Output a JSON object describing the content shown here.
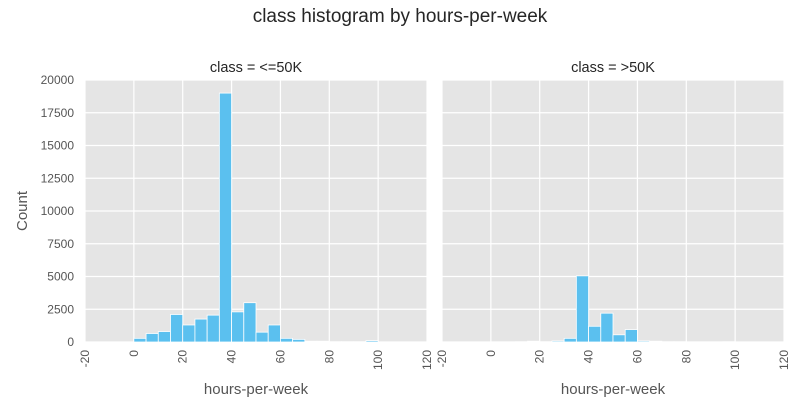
{
  "chart_data": {
    "type": "bar",
    "title": "class histogram by hours-per-week",
    "xlabel": "hours-per-week",
    "ylabel": "Count",
    "grid": true,
    "color": "#5bc0ef",
    "background": "#e5e5e5",
    "xlim": [
      -20,
      120
    ],
    "ylim": [
      0,
      20000
    ],
    "xticks": [
      -20,
      0,
      20,
      40,
      60,
      80,
      100,
      120
    ],
    "yticks": [
      0,
      2500,
      5000,
      7500,
      10000,
      12500,
      15000,
      17500,
      20000
    ],
    "bin_width": 5,
    "bin_starts": [
      0,
      5,
      10,
      15,
      20,
      25,
      30,
      35,
      40,
      45,
      50,
      55,
      60,
      65,
      70,
      75,
      80,
      85,
      90,
      95
    ],
    "panels": [
      {
        "title": "class = <=50K",
        "values": [
          280,
          650,
          800,
          2100,
          1300,
          1750,
          2050,
          19000,
          2300,
          3000,
          750,
          1300,
          280,
          200,
          60,
          60,
          20,
          20,
          20,
          100
        ]
      },
      {
        "title": "class = >50K",
        "values": [
          10,
          10,
          20,
          60,
          20,
          80,
          280,
          5050,
          1200,
          2200,
          550,
          950,
          80,
          60,
          20,
          20,
          10,
          10,
          10,
          20
        ]
      }
    ]
  }
}
